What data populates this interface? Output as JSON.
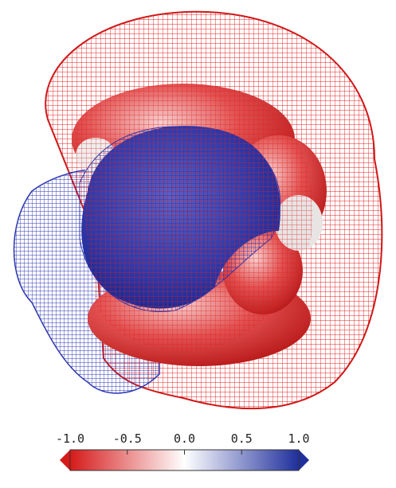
{
  "colorbar": {
    "lim": [
      -1,
      1
    ],
    "ticks": [
      {
        "value": -1,
        "label": "-1.0"
      },
      -0.5,
      {
        "value": 0,
        "label": "0.0"
      },
      0.5,
      {
        "value": 1,
        "label": "1.0"
      }
    ]
  }
}
